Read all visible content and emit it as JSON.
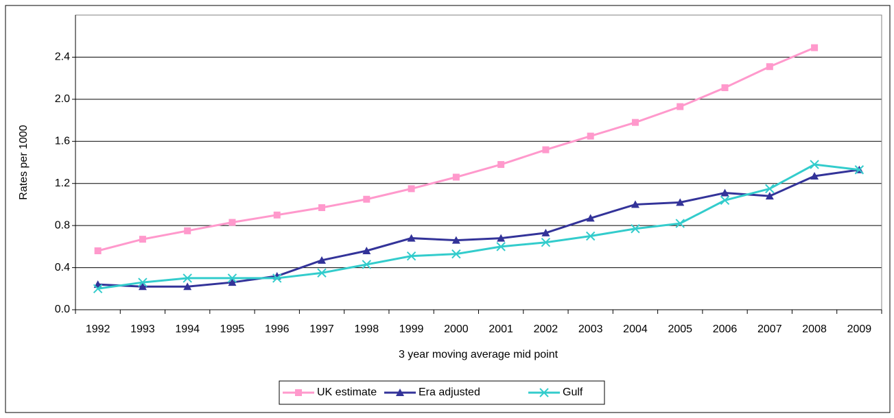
{
  "chart_data": {
    "type": "line",
    "y_label": "Rates per 1000",
    "x_label": "3 year moving average mid point",
    "categories": [
      "1992",
      "1993",
      "1994",
      "1995",
      "1996",
      "1997",
      "1998",
      "1999",
      "2000",
      "2001",
      "2002",
      "2003",
      "2004",
      "2005",
      "2006",
      "2007",
      "2008",
      "2009"
    ],
    "series": [
      {
        "name": "UK estimate",
        "color": "#ff99cc",
        "marker": "square",
        "values": [
          0.56,
          0.67,
          0.75,
          0.83,
          0.9,
          0.97,
          1.05,
          1.15,
          1.26,
          1.38,
          1.52,
          1.65,
          1.78,
          1.93,
          2.11,
          2.31,
          2.49,
          null
        ]
      },
      {
        "name": "Era adjusted",
        "color": "#333399",
        "marker": "triangle",
        "values": [
          0.24,
          0.22,
          0.22,
          0.26,
          0.32,
          0.47,
          0.56,
          0.68,
          0.66,
          0.68,
          0.73,
          0.87,
          1.0,
          1.02,
          1.11,
          1.08,
          1.27,
          1.33
        ]
      },
      {
        "name": "Gulf",
        "color": "#33cccc",
        "marker": "x",
        "values": [
          0.2,
          0.26,
          0.3,
          0.3,
          0.3,
          0.35,
          0.43,
          0.51,
          0.53,
          0.6,
          0.64,
          0.7,
          0.77,
          0.82,
          1.04,
          1.15,
          1.38,
          1.33
        ]
      }
    ],
    "ylim": [
      0,
      2.8
    ],
    "yticks": [
      {
        "value": 0,
        "label": "0.0"
      },
      0.4,
      0.8,
      1.2,
      1.6,
      {
        "value": 2,
        "label": "2.0"
      },
      2.4
    ],
    "grid": true,
    "legend": "bottom"
  }
}
